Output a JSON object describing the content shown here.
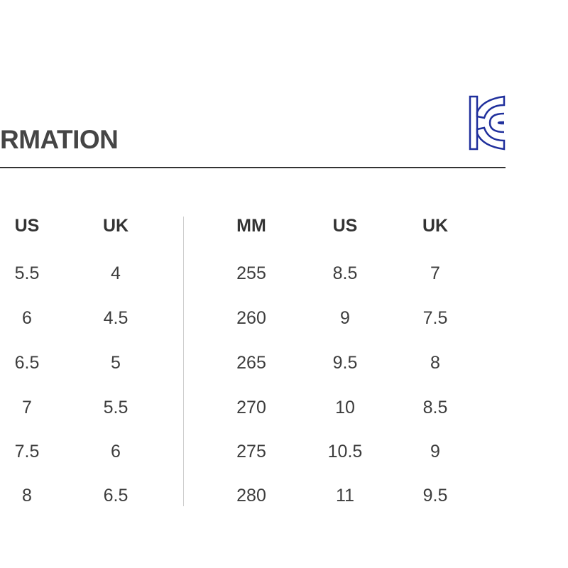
{
  "title": "RMATION",
  "logo": {
    "text": "KC",
    "color": "#1f2f9c"
  },
  "left_table": {
    "headers": [
      "US",
      "UK"
    ],
    "rows": [
      [
        "5.5",
        "4"
      ],
      [
        "6",
        "4.5"
      ],
      [
        "6.5",
        "5"
      ],
      [
        "7",
        "5.5"
      ],
      [
        "7.5",
        "6"
      ],
      [
        "8",
        "6.5"
      ]
    ]
  },
  "right_table": {
    "headers": [
      "MM",
      "US",
      "UK"
    ],
    "rows": [
      [
        "255",
        "8.5",
        "7"
      ],
      [
        "260",
        "9",
        "7.5"
      ],
      [
        "265",
        "9.5",
        "8"
      ],
      [
        "270",
        "10",
        "8.5"
      ],
      [
        "275",
        "10.5",
        "9"
      ],
      [
        "280",
        "11",
        "9.5"
      ]
    ]
  }
}
